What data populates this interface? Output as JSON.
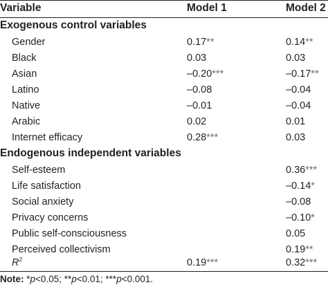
{
  "header": {
    "variable": "Variable",
    "model1": "Model 1",
    "model2": "Model 2"
  },
  "sections": [
    {
      "title": "Exogenous control variables",
      "rows": [
        {
          "label": "Gender",
          "m1": "0.17",
          "m1_stars": "**",
          "m2": "0.14",
          "m2_stars": "**"
        },
        {
          "label": "Black",
          "m1": "0.03",
          "m1_stars": "",
          "m2": "0.03",
          "m2_stars": ""
        },
        {
          "label": "Asian",
          "m1": "–0.20",
          "m1_stars": "***",
          "m2": "–0.17",
          "m2_stars": "**"
        },
        {
          "label": "Latino",
          "m1": "–0.08",
          "m1_stars": "",
          "m2": "–0.04",
          "m2_stars": ""
        },
        {
          "label": "Native",
          "m1": "–0.01",
          "m1_stars": "",
          "m2": "–0.04",
          "m2_stars": ""
        },
        {
          "label": "Arabic",
          "m1": "0.02",
          "m1_stars": "",
          "m2": "0.01",
          "m2_stars": ""
        },
        {
          "label": "Internet efficacy",
          "m1": "0.28",
          "m1_stars": "***",
          "m2": "0.03",
          "m2_stars": ""
        }
      ]
    },
    {
      "title": "Endogenous independent variables",
      "rows": [
        {
          "label": "Self-esteem",
          "m1": "",
          "m1_stars": "",
          "m2": "0.36",
          "m2_stars": "***"
        },
        {
          "label": "Life satisfaction",
          "m1": "",
          "m1_stars": "",
          "m2": "–0.14",
          "m2_stars": "*"
        },
        {
          "label": "Social anxiety",
          "m1": "",
          "m1_stars": "",
          "m2": "–0.08",
          "m2_stars": ""
        },
        {
          "label": "Privacy concerns",
          "m1": "",
          "m1_stars": "",
          "m2": "–0.10",
          "m2_stars": "*"
        },
        {
          "label": "Public self-consciousness",
          "m1": "",
          "m1_stars": "",
          "m2": "0.05",
          "m2_stars": ""
        },
        {
          "label": "Perceived collectivism",
          "m1": "",
          "m1_stars": "",
          "m2": "0.19",
          "m2_stars": "**"
        }
      ]
    }
  ],
  "r_squared": {
    "label": "R",
    "sup": "2",
    "m1": "0.19",
    "m1_stars": "***",
    "m2": "0.32",
    "m2_stars": "***"
  },
  "note": {
    "prefix": "Note:",
    "p1_stars": "*",
    "p1_var": "p",
    "p1_rest": "<0.05; ",
    "p2_stars": "**",
    "p2_var": "p",
    "p2_rest": "<0.01; ",
    "p3_stars": "***",
    "p3_var": "p",
    "p3_rest": "<0.001."
  }
}
